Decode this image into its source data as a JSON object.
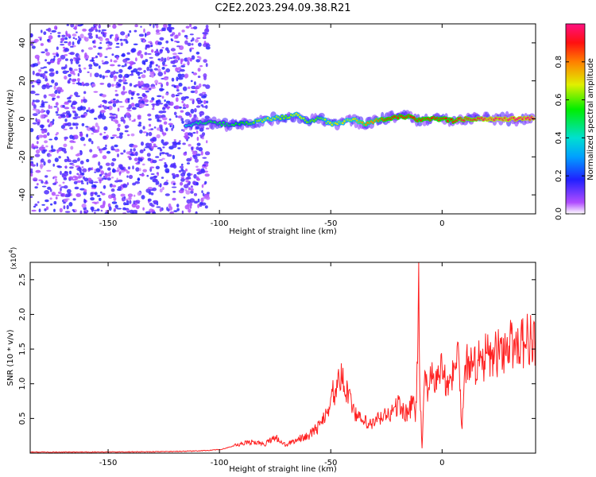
{
  "title": "C2E2.2023.294.09.38.R21",
  "chart_data": [
    {
      "type": "heatmap",
      "xlabel": "Height of straight line (km)",
      "ylabel": "Frequency (Hz)",
      "xlim": [
        -185,
        42
      ],
      "ylim": [
        -50,
        50
      ],
      "x_ticks": [
        -150,
        -100,
        -50,
        0
      ],
      "y_ticks": [
        -40,
        -20,
        0,
        20,
        40
      ],
      "colorbar": {
        "label": "Normalized spectral amplitude",
        "range": [
          0,
          1
        ],
        "ticks": [
          0.0,
          0.2,
          0.4,
          0.6,
          0.8
        ]
      },
      "ridge": {
        "x": [
          -115,
          -105,
          -95,
          -85,
          -78,
          -70,
          -65,
          -60,
          -55,
          -50,
          -45,
          -40,
          -35,
          -30,
          -25,
          -20,
          -15,
          -10,
          -5,
          0,
          5,
          10,
          15,
          20,
          25,
          30,
          35,
          40
        ],
        "freq": [
          -3,
          -2,
          -3,
          -2,
          0,
          1,
          2,
          -2,
          1,
          -3,
          -2,
          0,
          -3,
          -1,
          0,
          1,
          1,
          -1,
          0,
          0,
          -1,
          0,
          0,
          0,
          0,
          0,
          0,
          0
        ],
        "amplitude": [
          0.4,
          0.5,
          0.5,
          0.6,
          0.7,
          0.6,
          0.7,
          0.6,
          0.6,
          0.7,
          0.7,
          0.7,
          0.8,
          0.8,
          0.9,
          0.9,
          0.9,
          0.9,
          0.9,
          0.9,
          0.9,
          0.95,
          0.95,
          1.0,
          1.0,
          1.0,
          1.0,
          1.0
        ]
      },
      "noise_region": [
        -185,
        -105
      ]
    },
    {
      "type": "line",
      "xlabel": "Height of straight line (km)",
      "ylabel": "SNR (10 * v/v)",
      "y_multiplier": "(x10",
      "y_multiplier_exp": "4",
      "y_multiplier_close": ")",
      "xlim": [
        -185,
        42
      ],
      "ylim": [
        0,
        27500
      ],
      "x_ticks": [
        -150,
        -100,
        -50,
        0
      ],
      "y_ticks": [
        5000,
        10000,
        15000,
        20000,
        25000
      ],
      "y_tick_labels": [
        "0.5",
        "1.0",
        "1.5",
        "2.0",
        "2.5"
      ],
      "color": "#ff2020",
      "series": [
        {
          "x": [
            -185,
            -160,
            -130,
            -110,
            -100,
            -95,
            -90,
            -85,
            -80,
            -75,
            -72,
            -70,
            -65,
            -60,
            -55,
            -52,
            -50,
            -48,
            -45,
            -42,
            -40,
            -38,
            -35,
            -32,
            -30,
            -28,
            -25,
            -22,
            -20,
            -18,
            -15,
            -13,
            -12,
            -11,
            -10.5,
            -10,
            -9,
            -8,
            -6,
            -4,
            -2,
            0,
            2,
            4,
            6,
            7,
            8,
            9,
            10,
            12,
            14,
            16,
            18,
            20,
            22,
            25,
            28,
            30,
            33,
            36,
            40,
            42
          ],
          "y": [
            150,
            150,
            200,
            300,
            500,
            900,
            1300,
            1700,
            1200,
            2400,
            1500,
            1200,
            2000,
            2500,
            4000,
            6000,
            8000,
            9000,
            10500,
            9000,
            7000,
            5000,
            4500,
            4000,
            4500,
            5000,
            5500,
            6000,
            7000,
            6500,
            5500,
            8000,
            4500,
            13000,
            27500,
            9000,
            700,
            10000,
            9500,
            11000,
            10500,
            12500,
            10500,
            11000,
            12000,
            16000,
            9000,
            3500,
            11000,
            14000,
            12500,
            13500,
            12000,
            14500,
            13500,
            14500,
            15000,
            15500,
            16000,
            16200,
            16500,
            16300
          ]
        }
      ]
    }
  ]
}
